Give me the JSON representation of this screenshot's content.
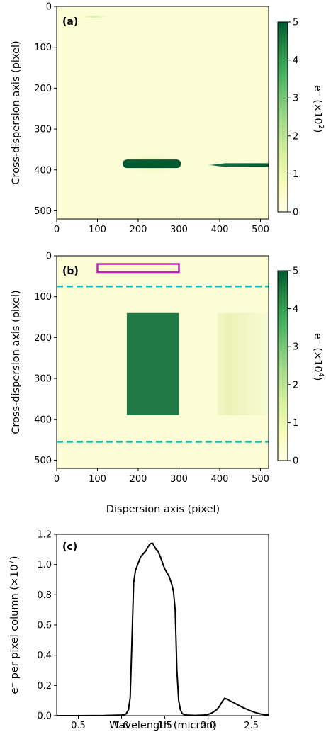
{
  "colors": {
    "cmap_low": "#ffffe5",
    "cmap_mid": "#a8dda5",
    "cmap_high": "#005a32",
    "aperture_box": "#c020c0",
    "extraction_lines": "#17bfbf",
    "curve": "#000000"
  },
  "chart_data": [
    {
      "type": "heatmap",
      "panel_label": "(a)",
      "ylabel": "Cross-dispersion axis (pixel)",
      "xlabel": "",
      "x_ticks": [
        0,
        100,
        200,
        300,
        400,
        500
      ],
      "y_ticks": [
        0,
        100,
        200,
        300,
        400,
        500
      ],
      "xlim": [
        0,
        520
      ],
      "ylim": [
        520,
        0
      ],
      "colorbar": {
        "label_main": "e⁻ (×10",
        "label_exp": "2",
        "label_end": ")",
        "ticks": [
          0,
          1,
          2,
          3,
          4,
          5
        ],
        "range": [
          0,
          5
        ]
      },
      "features": [
        {
          "name": "spectrum trace 1",
          "x_range": [
            162,
            305
          ],
          "y_center": 385,
          "peak": 5
        },
        {
          "name": "spectrum trace 2",
          "x_range": [
            370,
            520
          ],
          "y_center": 388,
          "peak": 4
        },
        {
          "name": "faint streak",
          "x_range": [
            60,
            125
          ],
          "y_center": 25,
          "peak": 0.4
        }
      ]
    },
    {
      "type": "heatmap",
      "panel_label": "(b)",
      "ylabel": "Cross-dispersion axis (pixel)",
      "xlabel": "Dispersion axis (pixel)",
      "x_ticks": [
        0,
        100,
        200,
        300,
        400,
        500
      ],
      "y_ticks": [
        0,
        100,
        200,
        300,
        400,
        500
      ],
      "xlim": [
        0,
        520
      ],
      "ylim": [
        520,
        0
      ],
      "colorbar": {
        "label_main": "e⁻ (×10",
        "label_exp": "4",
        "label_end": ")",
        "ticks": [
          0,
          1,
          2,
          3,
          4,
          5
        ],
        "range": [
          0,
          5
        ]
      },
      "features": [
        {
          "name": "bright block",
          "x_range": [
            172,
            300
          ],
          "y_range": [
            140,
            390
          ],
          "value": 4.5
        },
        {
          "name": "faint block",
          "x_range": [
            395,
            520
          ],
          "y_range": [
            140,
            390
          ],
          "value": 0.5
        }
      ],
      "aperture_box": {
        "x_range": [
          100,
          300
        ],
        "y_range": [
          20,
          40
        ]
      },
      "extraction_lines_y": [
        75,
        455
      ]
    },
    {
      "type": "line",
      "panel_label": "(c)",
      "xlabel": "Wavelength (micron)",
      "ylabel_main": "e⁻ per pixel column (×10",
      "ylabel_exp": "7",
      "ylabel_end": ")",
      "x_ticks": [
        0.5,
        1.0,
        1.5,
        2.0,
        2.5
      ],
      "x_tick_labels": [
        "0.5",
        "1.0",
        "1.5",
        "2.0",
        "2.5"
      ],
      "y_ticks": [
        0.0,
        0.2,
        0.4,
        0.6,
        0.8,
        1.0,
        1.2
      ],
      "y_tick_labels": [
        "0.0",
        "0.2",
        "0.4",
        "0.6",
        "0.8",
        "1.0",
        "1.2"
      ],
      "xlim": [
        0.25,
        2.7
      ],
      "ylim": [
        0,
        1.2
      ],
      "series": [
        {
          "x": [
            0.25,
            0.5,
            0.8,
            1.0,
            1.05,
            1.08,
            1.1,
            1.12,
            1.14,
            1.16,
            1.18,
            1.2,
            1.22,
            1.25,
            1.28,
            1.3,
            1.32,
            1.34,
            1.36,
            1.38,
            1.4,
            1.42,
            1.45,
            1.48,
            1.5,
            1.52,
            1.55,
            1.58,
            1.6,
            1.62,
            1.64,
            1.66,
            1.68,
            1.7,
            1.72,
            1.75,
            1.8,
            1.85,
            1.9,
            1.95,
            2.0,
            2.05,
            2.1,
            2.13,
            2.16,
            2.19,
            2.22,
            2.25,
            2.3,
            2.35,
            2.4,
            2.45,
            2.5,
            2.55,
            2.6,
            2.65,
            2.7
          ],
          "y": [
            0.0,
            0.0,
            0.001,
            0.004,
            0.01,
            0.04,
            0.12,
            0.5,
            0.88,
            0.96,
            0.99,
            1.02,
            1.05,
            1.07,
            1.09,
            1.11,
            1.13,
            1.14,
            1.14,
            1.12,
            1.1,
            1.09,
            1.05,
            1.0,
            0.97,
            0.95,
            0.92,
            0.87,
            0.82,
            0.7,
            0.3,
            0.1,
            0.04,
            0.015,
            0.008,
            0.004,
            0.003,
            0.002,
            0.003,
            0.004,
            0.008,
            0.02,
            0.04,
            0.06,
            0.09,
            0.115,
            0.11,
            0.1,
            0.085,
            0.07,
            0.055,
            0.042,
            0.03,
            0.02,
            0.012,
            0.007,
            0.004
          ]
        }
      ]
    }
  ]
}
